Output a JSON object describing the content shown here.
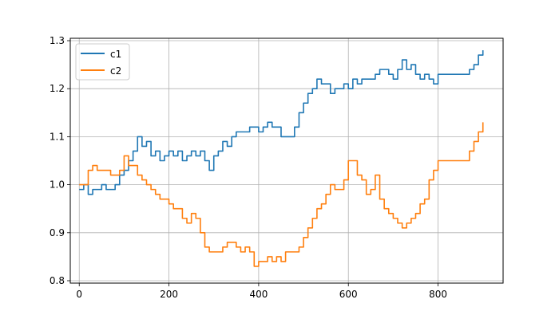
{
  "chart_data": {
    "type": "line",
    "x_ticks": [
      0,
      200,
      400,
      600,
      800
    ],
    "y_ticks": [
      0.8,
      0.9,
      1.0,
      1.1,
      1.2,
      1.3
    ],
    "y_tick_labels": [
      "0.8",
      "0.9",
      "1.0",
      "1.1",
      "1.2",
      "1.3"
    ],
    "xlim": [
      -20,
      945
    ],
    "ylim": [
      0.795,
      1.305
    ],
    "grid": true,
    "legend_position": "top-left",
    "series": [
      {
        "name": "c1",
        "color": "#1f77b4",
        "x": [
          0,
          10,
          20,
          30,
          40,
          50,
          60,
          70,
          80,
          90,
          100,
          110,
          120,
          130,
          140,
          150,
          160,
          170,
          180,
          190,
          200,
          210,
          220,
          230,
          240,
          250,
          260,
          270,
          280,
          290,
          300,
          310,
          320,
          330,
          340,
          350,
          360,
          370,
          380,
          390,
          400,
          410,
          420,
          430,
          440,
          450,
          460,
          470,
          480,
          490,
          500,
          510,
          520,
          530,
          540,
          550,
          560,
          570,
          580,
          590,
          600,
          610,
          620,
          630,
          640,
          650,
          660,
          670,
          680,
          690,
          700,
          710,
          720,
          730,
          740,
          750,
          760,
          770,
          780,
          790,
          800,
          810,
          820,
          830,
          840,
          850,
          860,
          870,
          880,
          890,
          900
        ],
        "values": [
          0.99,
          1.0,
          0.98,
          0.99,
          0.99,
          1.0,
          0.99,
          0.99,
          1.0,
          1.02,
          1.03,
          1.05,
          1.07,
          1.1,
          1.08,
          1.09,
          1.06,
          1.07,
          1.05,
          1.06,
          1.07,
          1.06,
          1.07,
          1.05,
          1.06,
          1.07,
          1.06,
          1.07,
          1.05,
          1.03,
          1.06,
          1.07,
          1.09,
          1.08,
          1.1,
          1.11,
          1.11,
          1.11,
          1.12,
          1.12,
          1.11,
          1.12,
          1.13,
          1.12,
          1.12,
          1.1,
          1.1,
          1.1,
          1.12,
          1.15,
          1.17,
          1.19,
          1.2,
          1.22,
          1.21,
          1.21,
          1.19,
          1.2,
          1.2,
          1.21,
          1.2,
          1.22,
          1.21,
          1.22,
          1.22,
          1.22,
          1.23,
          1.24,
          1.24,
          1.23,
          1.22,
          1.24,
          1.26,
          1.24,
          1.25,
          1.23,
          1.22,
          1.23,
          1.22,
          1.21,
          1.23,
          1.23,
          1.23,
          1.23,
          1.23,
          1.23,
          1.23,
          1.24,
          1.25,
          1.27,
          1.28
        ]
      },
      {
        "name": "c2",
        "color": "#ff7f0e",
        "x": [
          0,
          10,
          20,
          30,
          40,
          50,
          60,
          70,
          80,
          90,
          100,
          110,
          120,
          130,
          140,
          150,
          160,
          170,
          180,
          190,
          200,
          210,
          220,
          230,
          240,
          250,
          260,
          270,
          280,
          290,
          300,
          310,
          320,
          330,
          340,
          350,
          360,
          370,
          380,
          390,
          400,
          410,
          420,
          430,
          440,
          450,
          460,
          470,
          480,
          490,
          500,
          510,
          520,
          530,
          540,
          550,
          560,
          570,
          580,
          590,
          600,
          610,
          620,
          630,
          640,
          650,
          660,
          670,
          680,
          690,
          700,
          710,
          720,
          730,
          740,
          750,
          760,
          770,
          780,
          790,
          800,
          810,
          820,
          830,
          840,
          850,
          860,
          870,
          880,
          890,
          900
        ],
        "values": [
          1.0,
          1.0,
          1.03,
          1.04,
          1.03,
          1.03,
          1.03,
          1.02,
          1.02,
          1.03,
          1.06,
          1.04,
          1.04,
          1.02,
          1.01,
          1.0,
          0.99,
          0.98,
          0.97,
          0.97,
          0.96,
          0.95,
          0.95,
          0.93,
          0.92,
          0.94,
          0.93,
          0.9,
          0.87,
          0.86,
          0.86,
          0.86,
          0.87,
          0.88,
          0.88,
          0.87,
          0.86,
          0.87,
          0.86,
          0.83,
          0.84,
          0.84,
          0.85,
          0.84,
          0.85,
          0.84,
          0.86,
          0.86,
          0.86,
          0.87,
          0.89,
          0.91,
          0.93,
          0.95,
          0.96,
          0.98,
          1.0,
          0.99,
          0.99,
          1.01,
          1.05,
          1.05,
          1.02,
          1.01,
          0.98,
          0.99,
          1.02,
          0.97,
          0.95,
          0.94,
          0.93,
          0.92,
          0.91,
          0.92,
          0.93,
          0.94,
          0.96,
          0.97,
          1.01,
          1.03,
          1.05,
          1.05,
          1.05,
          1.05,
          1.05,
          1.05,
          1.05,
          1.07,
          1.09,
          1.11,
          1.13
        ]
      }
    ]
  }
}
